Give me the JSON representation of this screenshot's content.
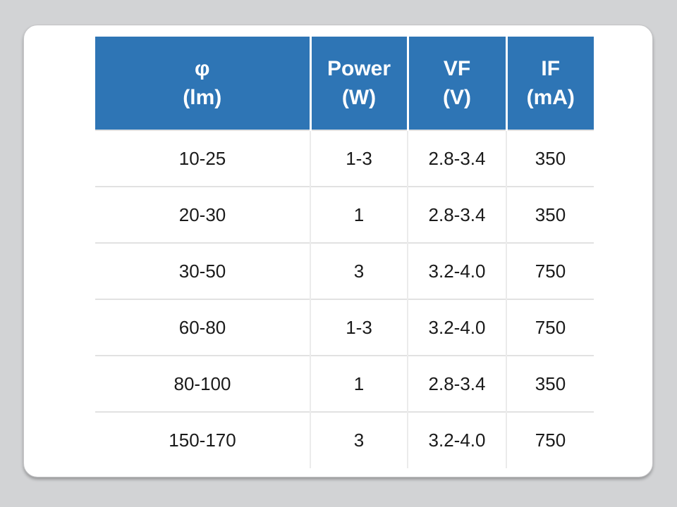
{
  "chart_data": {
    "type": "table",
    "columns": [
      {
        "symbol": "φ",
        "unit": "(lm)"
      },
      {
        "symbol": "Power",
        "unit": "(W)"
      },
      {
        "symbol": "VF",
        "unit": "(V)"
      },
      {
        "symbol": "IF",
        "unit": "(mA)"
      }
    ],
    "rows": [
      [
        "10-25",
        "1-3",
        "2.8-3.4",
        "350"
      ],
      [
        "20-30",
        "1",
        "2.8-3.4",
        "350"
      ],
      [
        "30-50",
        "3",
        "3.2-4.0",
        "750"
      ],
      [
        "60-80",
        "1-3",
        "3.2-4.0",
        "750"
      ],
      [
        "80-100",
        "1",
        "2.8-3.4",
        "350"
      ],
      [
        "150-170",
        "3",
        "3.2-4.0",
        "750"
      ]
    ],
    "layout": {
      "header_position": "top",
      "grid": "horizontal-and-vertical-inner-lines",
      "banding": "none"
    }
  },
  "colors": {
    "page_background": "#D2D3D5",
    "card_background": "#FFFFFF",
    "header_background": "#2E75B5",
    "header_text": "#FFFFFF",
    "body_text": "#1A1A1A",
    "row_divider": "#E2E2E2",
    "column_divider": "#EBEBEB",
    "header_divider": "#FFFFFF"
  }
}
